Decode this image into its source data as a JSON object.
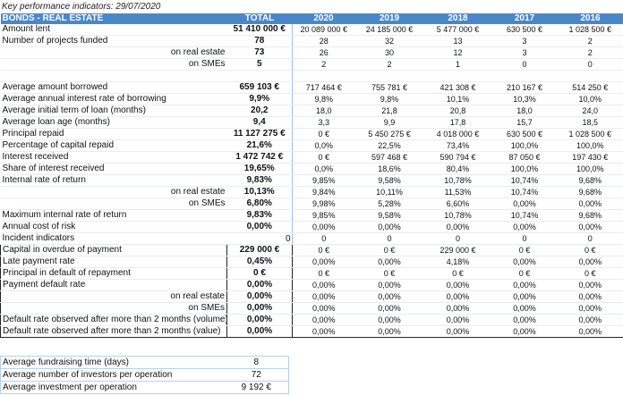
{
  "caption": "Key performance indicators: 29/07/2020",
  "header": {
    "label": "BONDS - REAL ESTATE",
    "total": "TOTAL",
    "years": [
      "2020",
      "2019",
      "2018",
      "2017",
      "2016"
    ]
  },
  "rows": [
    {
      "label": "Amount lent",
      "total": "51 410 000 €",
      "years": [
        "20 089 000 €",
        "24 185 000 €",
        "5 477 000 €",
        "630 500 €",
        "1 028 500 €"
      ]
    },
    {
      "label": "Number of projects funded",
      "total": "78",
      "years": [
        "28",
        "32",
        "13",
        "3",
        "2"
      ]
    },
    {
      "label": "on real estate",
      "sub": true,
      "total": "73",
      "years": [
        "26",
        "30",
        "12",
        "3",
        "2"
      ]
    },
    {
      "label": "on SMEs",
      "sub": true,
      "total": "5",
      "years": [
        "2",
        "2",
        "1",
        "0",
        "0"
      ]
    },
    {
      "blank": true
    },
    {
      "label": "Average amount borrowed",
      "total": "659 103 €",
      "years": [
        "717 464 €",
        "755 781 €",
        "421 308 €",
        "210 167 €",
        "514 250 €"
      ]
    },
    {
      "label": "Average annual interest rate of borrowing",
      "total": "9,9%",
      "years": [
        "9,8%",
        "9,8%",
        "10,1%",
        "10,3%",
        "10,0%"
      ]
    },
    {
      "label": "Average initial term of loan (months)",
      "total": "20,2",
      "years": [
        "18,0",
        "21,8",
        "20,8",
        "18,0",
        "24,0"
      ]
    },
    {
      "label": "Average loan age (months)",
      "total": "9,4",
      "years": [
        "3,3",
        "9,9",
        "17,8",
        "15,7",
        "18,5"
      ]
    },
    {
      "label": "Principal repaid",
      "total": "11 127 275 €",
      "years": [
        "0 €",
        "5 450 275 €",
        "4 018 000 €",
        "630 500 €",
        "1 028 500 €"
      ]
    },
    {
      "label": "Percentage of capital repaid",
      "total": "21,6%",
      "years": [
        "0,0%",
        "22,5%",
        "73,4%",
        "100,0%",
        "100,0%"
      ]
    },
    {
      "label": "Interest received",
      "total": "1 472 742 €",
      "years": [
        "0 €",
        "597 468 €",
        "590 794 €",
        "87 050 €",
        "197 430 €"
      ]
    },
    {
      "label": "Share of interest received",
      "total": "19,65%",
      "years": [
        "0,0%",
        "18,6%",
        "80,4%",
        "100,0%",
        "100,0%"
      ]
    },
    {
      "label": "Internal rate of return",
      "total": "9,83%",
      "years": [
        "9,85%",
        "9,58%",
        "10,78%",
        "10,74%",
        "9,68%"
      ]
    },
    {
      "label": "on real estate",
      "sub": true,
      "total": "10,13%",
      "years": [
        "9,84%",
        "10,11%",
        "11,53%",
        "10,74%",
        "9,68%"
      ]
    },
    {
      "label": "on SMEs",
      "sub": true,
      "total": "6,80%",
      "years": [
        "9,98%",
        "5,28%",
        "6,60%",
        "0,00%",
        "0,00%"
      ]
    },
    {
      "label": "Maximum internal rate of return",
      "total": "9,83%",
      "years": [
        "9,85%",
        "9,58%",
        "10,78%",
        "10,74%",
        "9,68%"
      ]
    },
    {
      "label": "Annual cost of risk",
      "total": "0,00%",
      "years": [
        "0,00%",
        "0,00%",
        "0,00%",
        "0,00%",
        "0,00%"
      ]
    },
    {
      "label": "Incident indicators",
      "total": "",
      "years": [
        "0",
        "0",
        "0",
        "0",
        "0"
      ]
    },
    {
      "label": "Capital in overdue of payment",
      "total": "229 000 €",
      "years": [
        "0 €",
        "0 €",
        "229 000 €",
        "0 €",
        "0 €"
      ]
    },
    {
      "label": "Late payment rate",
      "total": "0,45%",
      "years": [
        "0,00%",
        "0,00%",
        "4,18%",
        "0,00%",
        "0,00%"
      ]
    },
    {
      "label": "Principal in default of repayment",
      "total": "0 €",
      "years": [
        "0 €",
        "0 €",
        "0 €",
        "0 €",
        "0 €"
      ]
    },
    {
      "label": "Payment default rate",
      "total": "0,00%",
      "years": [
        "0,00%",
        "0,00%",
        "0,00%",
        "0,00%",
        "0,00%"
      ]
    },
    {
      "label": "on real estate",
      "sub": true,
      "total": "0,00%",
      "years": [
        "0,00%",
        "0,00%",
        "0,00%",
        "0,00%",
        "0,00%"
      ]
    },
    {
      "label": "on SMEs",
      "sub": true,
      "total": "0,00%",
      "years": [
        "0,00%",
        "0,00%",
        "0,00%",
        "0,00%",
        "0,00%"
      ]
    },
    {
      "label": "Default rate observed after more than 2 months (volume)",
      "total": "0,00%",
      "years": [
        "0,00%",
        "0,00%",
        "0,00%",
        "0,00%",
        "0,00%"
      ]
    },
    {
      "label": "Default rate observed after more than 2 months (value)",
      "total": "0,00%",
      "years": [
        "0,00%",
        "0,00%",
        "0,00%",
        "0,00%",
        "0,00%"
      ]
    }
  ],
  "incident_flag": "0",
  "summary": [
    {
      "label": "Average fundraising time (days)",
      "value": "8"
    },
    {
      "label": "Average number of investors per operation",
      "value": "72"
    },
    {
      "label": "Average investment per operation",
      "value": "9 192 €"
    }
  ]
}
